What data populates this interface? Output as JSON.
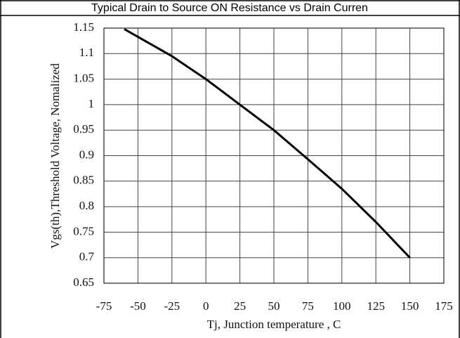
{
  "chart_data": {
    "type": "line",
    "title": "Typical Drain to Source ON Resistance vs Drain Curren",
    "x_label": "Tj, Junction temperature , C",
    "y_label": "Vgs(th),Threshold Voltage, Nomalized",
    "x": [
      -60,
      -25,
      0,
      25,
      50,
      75,
      100,
      125,
      150
    ],
    "series": [
      {
        "color": "#000000",
        "values": [
          1.148,
          1.095,
          1.05,
          1.0,
          0.95,
          0.893,
          0.835,
          0.77,
          0.7
        ]
      }
    ],
    "xlim": [
      -75,
      175
    ],
    "xticks": [
      -75,
      -50,
      -25,
      0,
      25,
      50,
      75,
      100,
      125,
      150,
      175
    ],
    "ylim": [
      0.65,
      1.15
    ],
    "yticks": [
      0.65,
      0.7,
      0.75,
      0.8,
      0.85,
      0.9,
      0.95,
      1,
      1.05,
      1.1,
      1.15
    ],
    "grid": true
  }
}
